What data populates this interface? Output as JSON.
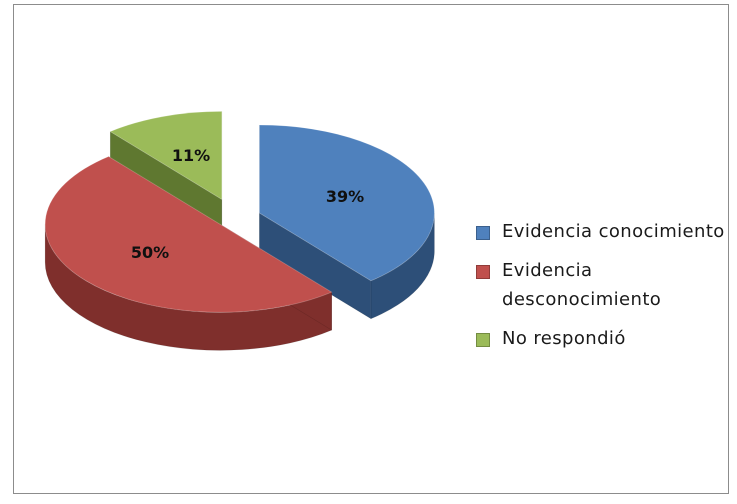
{
  "chart_data": {
    "type": "pie",
    "style": "3d-exploded",
    "categories": [
      "Evidencia conocimiento",
      "Evidencia desconocimiento",
      "No respondió"
    ],
    "values": [
      39,
      50,
      11
    ],
    "data_labels": [
      "39%",
      "50%",
      "11%"
    ],
    "colors": [
      "#4f81bd",
      "#c0504d",
      "#9bbb59"
    ],
    "side_colors": [
      "#2d4f78",
      "#7f2f2c",
      "#5f7830"
    ],
    "title": "",
    "legend_placement": "right"
  }
}
